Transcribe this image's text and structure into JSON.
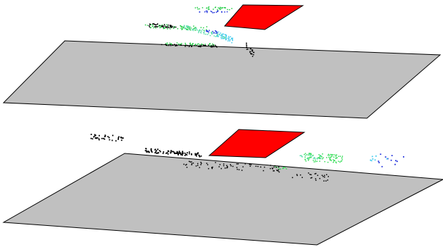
{
  "scenes": [
    {
      "id": "top",
      "plane_color": "#c0c0c0",
      "target_color": "#ff0000",
      "point_colors": {
        "black": "#000000",
        "green": "#22cc44",
        "teal": "#55ddaa",
        "blue": "#2233dd",
        "cyan": "#44ccee"
      }
    },
    {
      "id": "bottom",
      "plane_color": "#c0c0c0",
      "target_color": "#ff0000",
      "point_colors": {
        "black": "#000000",
        "green": "#33dd55",
        "teal": "#55ddaa",
        "blue": "#2233dd",
        "cyan": "#44ccee"
      }
    }
  ]
}
